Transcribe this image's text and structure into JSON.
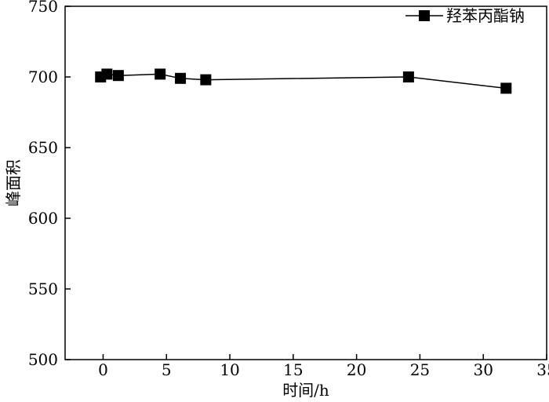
{
  "chart_data": {
    "type": "line",
    "title": "",
    "xlabel": "时间/h",
    "ylabel": "峰面积",
    "xlim": [
      -3,
      35
    ],
    "ylim": [
      500,
      750
    ],
    "xticks": [
      0,
      5,
      10,
      15,
      20,
      25,
      30,
      35
    ],
    "yticks": [
      500,
      550,
      600,
      650,
      700,
      750
    ],
    "grid": false,
    "legend_position": "top-right",
    "series": [
      {
        "name": "羟苯丙酯钠",
        "marker": "square",
        "color": "#000000",
        "x": [
          -0.2,
          0.3,
          1.2,
          4.5,
          6.1,
          8.1,
          24.1,
          31.8
        ],
        "y": [
          700,
          702,
          701,
          702,
          699,
          698,
          700,
          692
        ]
      }
    ]
  }
}
